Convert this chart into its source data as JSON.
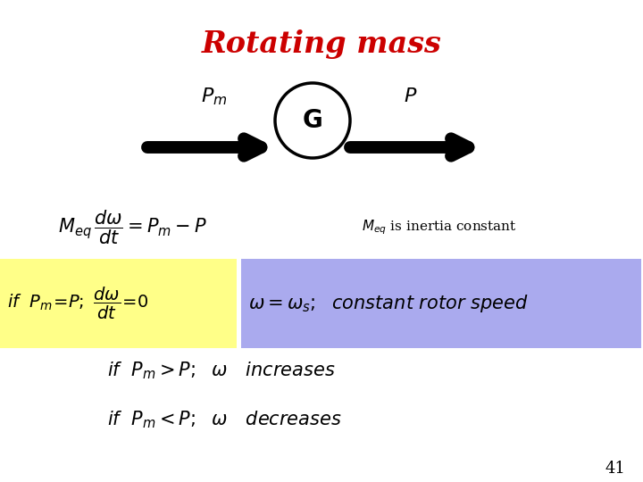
{
  "title": "Rotating mass",
  "title_color": "#cc0000",
  "title_fontsize": 24,
  "bg_color": "#ffffff",
  "slide_number": "41",
  "arrow_color": "#000000",
  "circle_lw": 2.5,
  "yellow_color": "#ffff88",
  "blue_color": "#aaaaee"
}
